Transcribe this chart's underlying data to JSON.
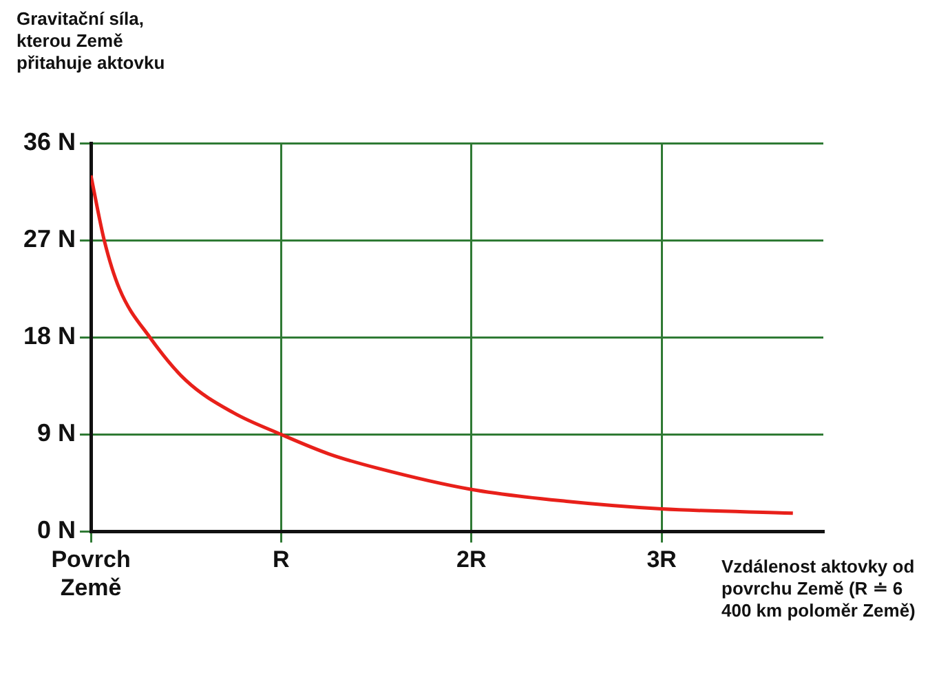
{
  "chart_data": {
    "type": "line",
    "xlabel": "Vzdálenost aktovky od povrchu Země (R ≐ 6 400 km poloměr Země)",
    "ylabel": "Gravitační síla, kterou Země přitahuje aktovku",
    "x": [
      0,
      0.07,
      0.15,
      0.31,
      0.5,
      0.75,
      1,
      1.25,
      1.5,
      2,
      2.5,
      3,
      3.69
    ],
    "series": [
      {
        "color": "#e8201a",
        "values": [
          33,
          27,
          22.5,
          18,
          14,
          11,
          9,
          7.2,
          5.9,
          3.9,
          2.8,
          2.1,
          1.7
        ]
      }
    ],
    "xlim": [
      0,
      3.85
    ],
    "xticks": [
      {
        "value": 0,
        "label": "Povrch Země"
      },
      {
        "value": 1,
        "label": "R"
      },
      {
        "value": 2,
        "label": "2R"
      },
      {
        "value": 3,
        "label": "3R"
      }
    ],
    "ylim": [
      0,
      36
    ],
    "yticks": [
      {
        "value": 0,
        "label": "0 N"
      },
      {
        "value": 9,
        "label": "9 N"
      },
      {
        "value": 18,
        "label": "18 N"
      },
      {
        "value": 27,
        "label": "27 N"
      },
      {
        "value": 36,
        "label": "36 N"
      }
    ],
    "grid": true,
    "legend": false,
    "marker": "none",
    "line_style": "solid"
  }
}
